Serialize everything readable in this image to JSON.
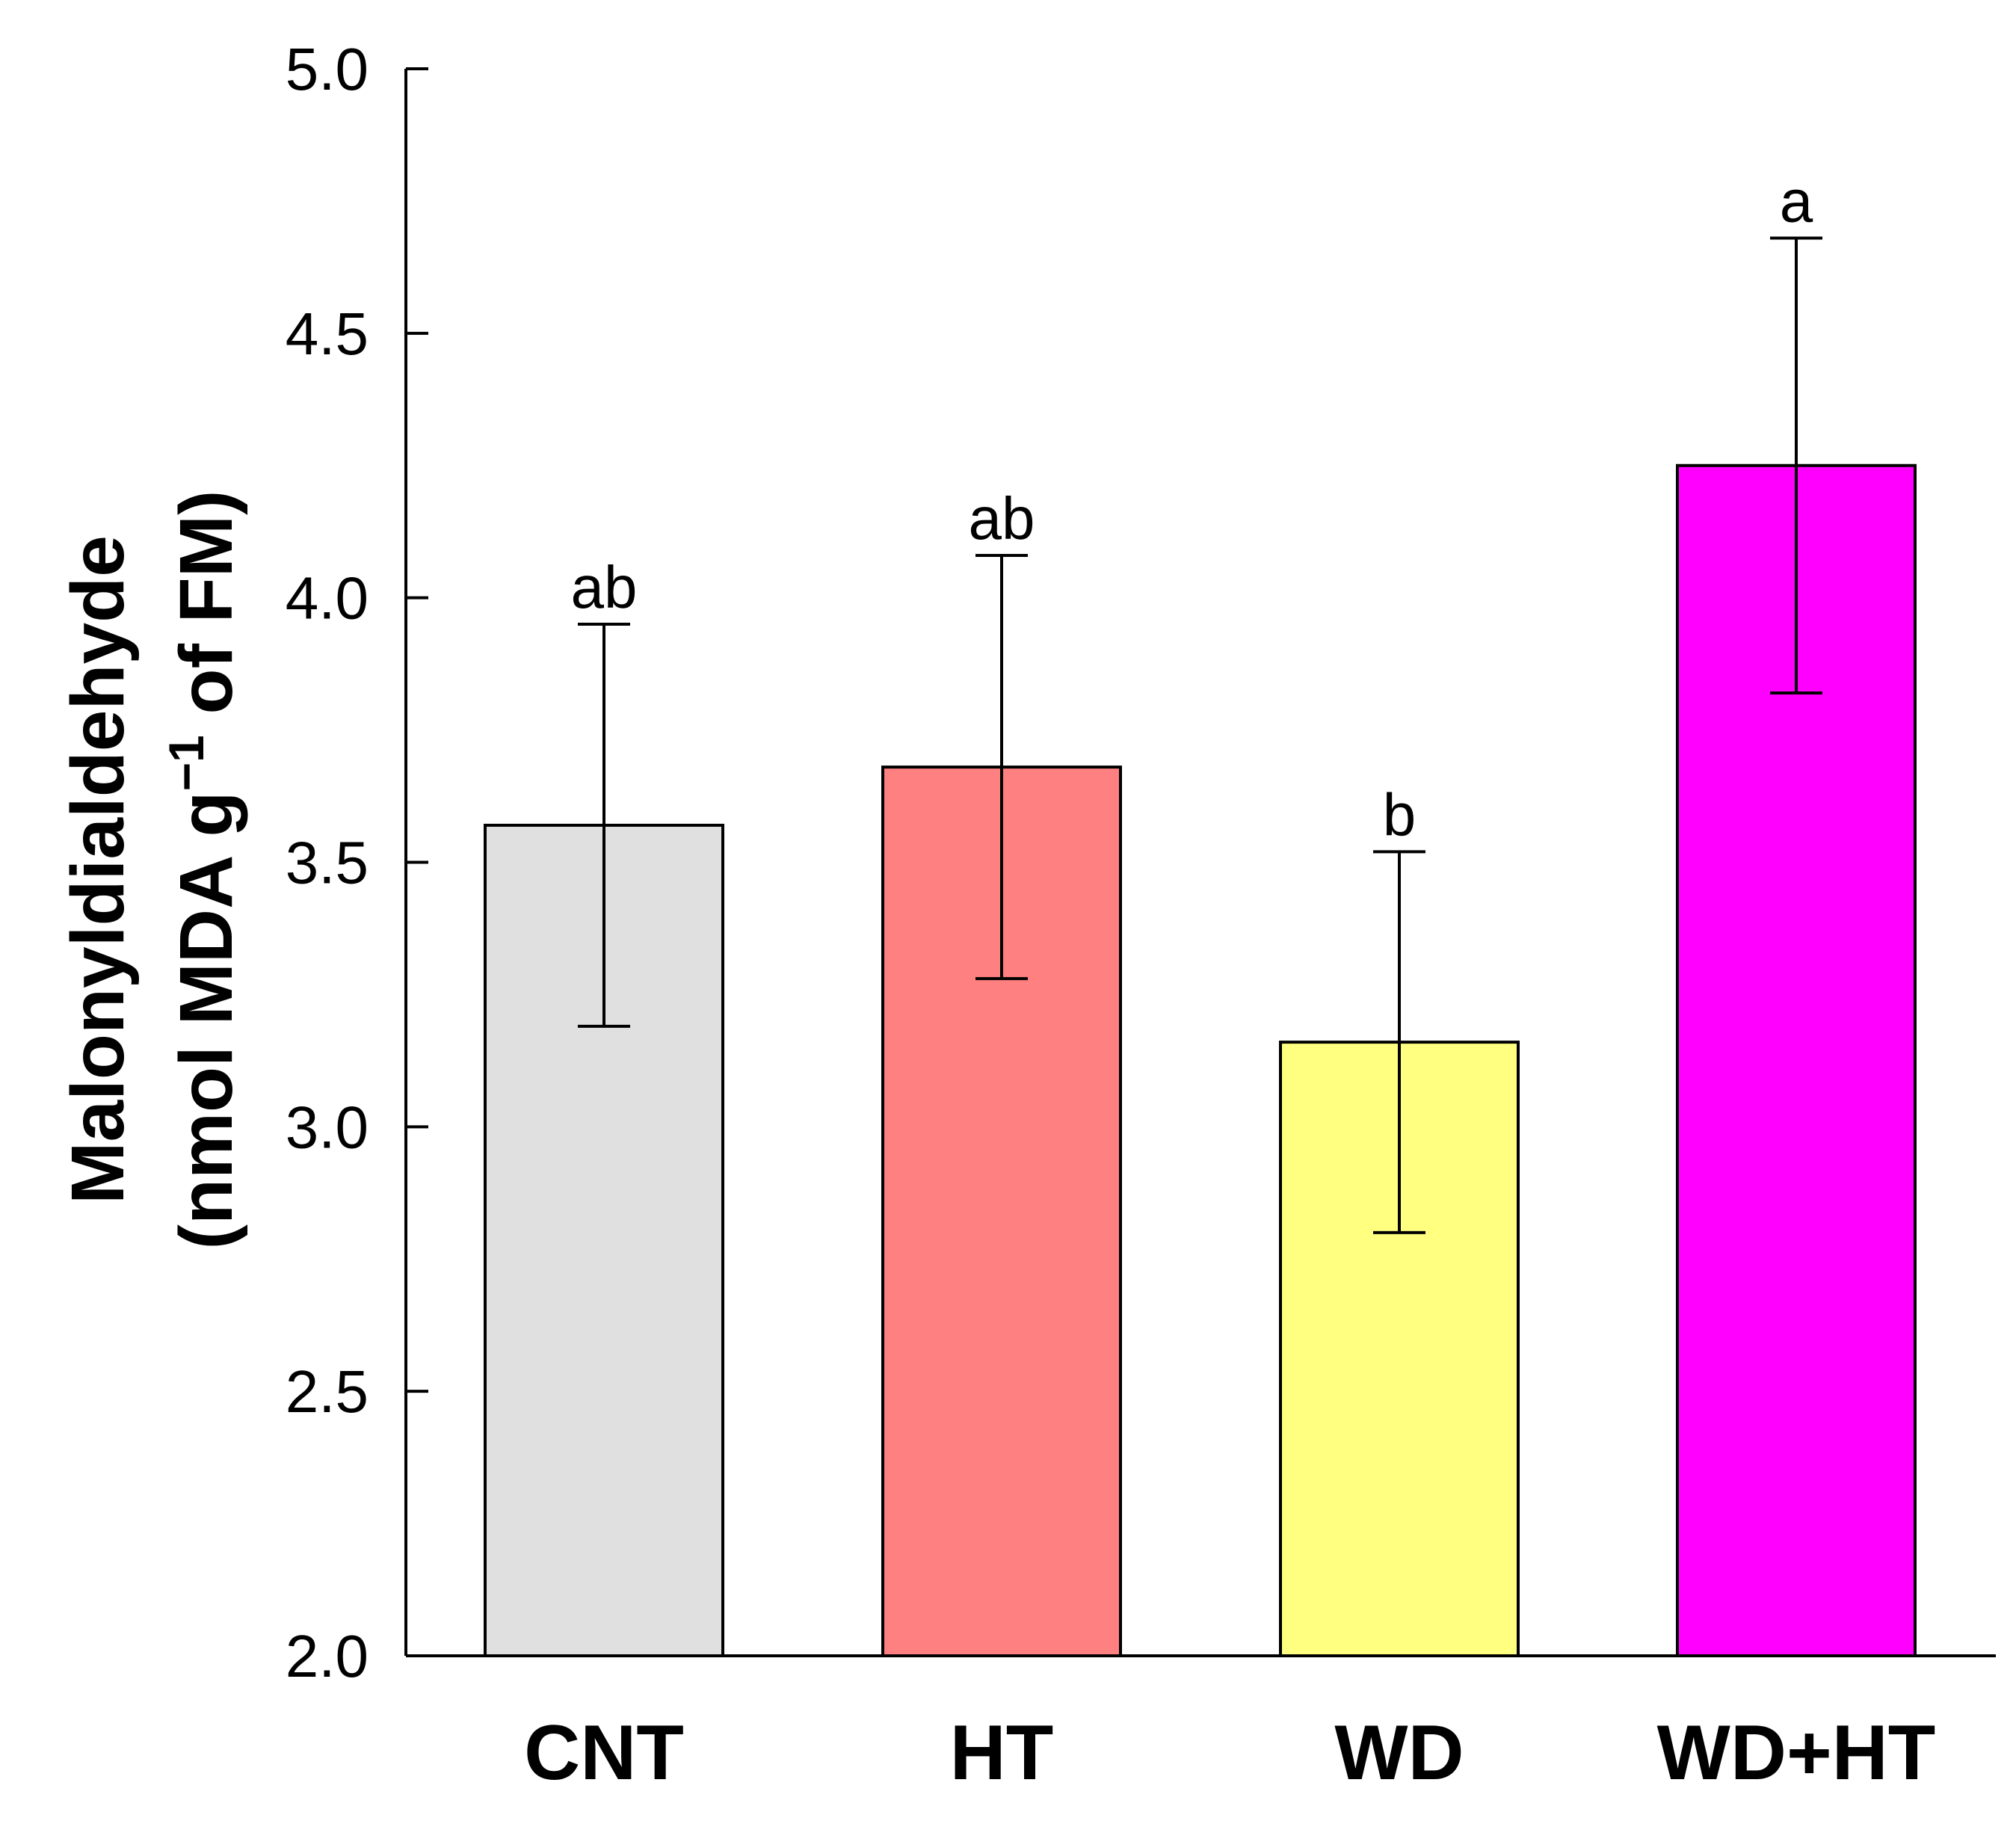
{
  "chart_data": {
    "type": "bar",
    "title": "",
    "xlabel": "",
    "ylabel": "Malonyldialdehyde",
    "ylabel_line2_prefix": "(nmol MDA g",
    "ylabel_line2_superscript": "−1",
    "ylabel_line2_suffix": " of FM)",
    "ylim": [
      2.0,
      5.0
    ],
    "yticks": [
      "2.0",
      "2.5",
      "3.0",
      "3.5",
      "4.0",
      "4.5",
      "5.0"
    ],
    "ytick_values": [
      2.0,
      2.5,
      3.0,
      3.5,
      4.0,
      4.5,
      5.0
    ],
    "categories": [
      "CNT",
      "HT",
      "WD",
      "WD+HT"
    ],
    "values": [
      3.57,
      3.68,
      3.16,
      4.25
    ],
    "errors": [
      0.38,
      0.4,
      0.36,
      0.43
    ],
    "significance": [
      "ab",
      "ab",
      "b",
      "a"
    ],
    "colors": [
      "#e0e0e0",
      "#ff8080",
      "#ffff80",
      "#ff00ff"
    ],
    "grid": false,
    "legend": "none"
  }
}
